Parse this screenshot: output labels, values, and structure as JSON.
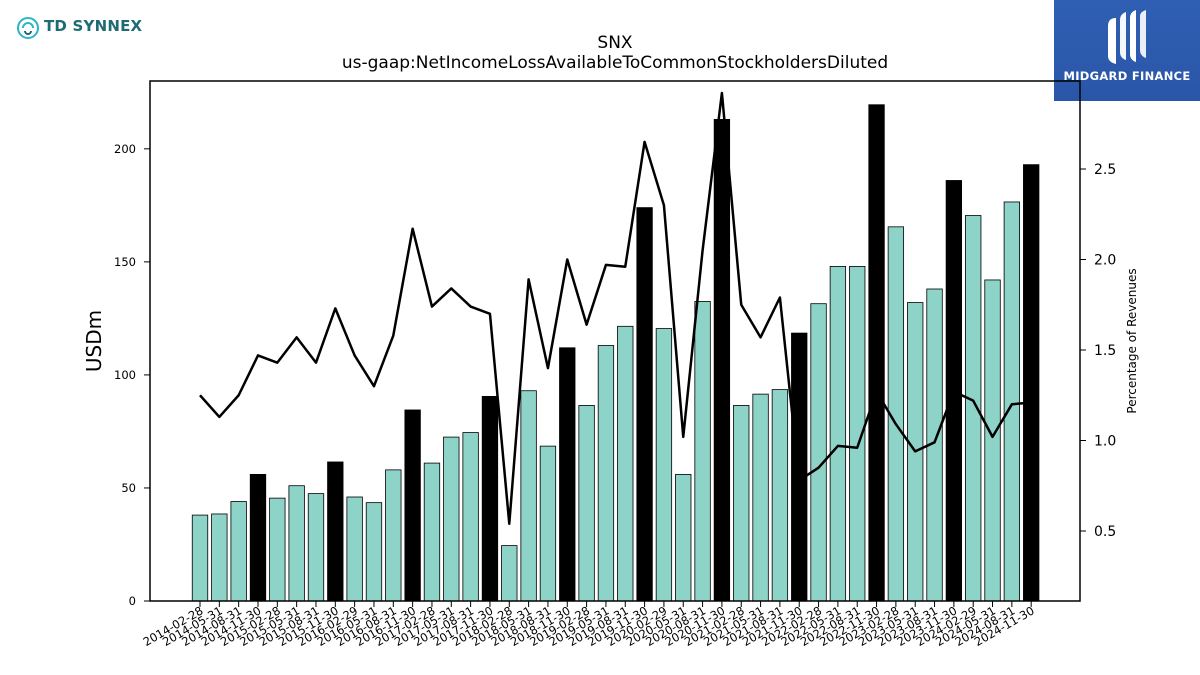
{
  "brand": {
    "left_logo_text": "TD SYNNEX",
    "right_logo_text": "MIDGARD FINANCE",
    "right_logo_bg": "#2c59ad"
  },
  "chart_data": {
    "type": "bar",
    "title": "SNX",
    "subtitle": "us-gaap:NetIncomeLossAvailableToCommonStockholdersDiluted",
    "ylabel": "USDm",
    "y2label": "Percentage of Revenues",
    "ylim": [
      0,
      230
    ],
    "y2lim": [
      0.1,
      3.0
    ],
    "yticks": [
      0,
      50,
      100,
      150,
      200
    ],
    "y2ticks": [
      0.5,
      1.0,
      1.5,
      2.0,
      2.5
    ],
    "bar_colors": {
      "quarter": "#8dd3c7",
      "fiscal_year_end": "#000000"
    },
    "line_color": "#000000",
    "grid": false,
    "legend": "none",
    "categories": [
      "2014-02-28",
      "2014-05-31",
      "2014-08-31",
      "2014-11-30",
      "2015-02-28",
      "2015-05-31",
      "2015-08-31",
      "2015-11-30",
      "2016-02-29",
      "2016-05-31",
      "2016-08-31",
      "2016-11-30",
      "2017-02-28",
      "2017-05-31",
      "2017-08-31",
      "2017-11-30",
      "2018-02-28",
      "2018-05-31",
      "2018-08-31",
      "2018-11-30",
      "2019-02-28",
      "2019-05-31",
      "2019-08-31",
      "2019-11-30",
      "2020-02-29",
      "2020-05-31",
      "2020-08-31",
      "2020-11-30",
      "2021-02-28",
      "2021-05-31",
      "2021-08-31",
      "2021-11-30",
      "2022-02-28",
      "2022-05-31",
      "2022-08-31",
      "2022-11-30",
      "2023-02-28",
      "2023-05-31",
      "2023-08-31",
      "2023-11-30",
      "2024-02-29",
      "2024-05-31",
      "2024-08-31",
      "2024-11-30"
    ],
    "fiscal_year_end": [
      false,
      false,
      false,
      true,
      false,
      false,
      false,
      true,
      false,
      false,
      false,
      true,
      false,
      false,
      false,
      true,
      false,
      false,
      false,
      true,
      false,
      false,
      false,
      true,
      false,
      false,
      false,
      true,
      false,
      false,
      false,
      true,
      false,
      false,
      false,
      true,
      false,
      false,
      false,
      true,
      false,
      false,
      false,
      true
    ],
    "series": [
      {
        "values": [
          38,
          38.5,
          44,
          56,
          45.5,
          51,
          47.5,
          61.5,
          46,
          43.5,
          58,
          84.5,
          61,
          72.5,
          74.5,
          90.5,
          24.5,
          93,
          68.5,
          112,
          86.5,
          113,
          121.5,
          174,
          120.5,
          56,
          132.5,
          213,
          86.5,
          91.5,
          93.5,
          118.5,
          131.5,
          148,
          148,
          219.5,
          165.5,
          132,
          138,
          186,
          170.5,
          142,
          176.5,
          193
        ]
      },
      {
        "axis": "right",
        "values": [
          1.25,
          1.13,
          1.25,
          1.47,
          1.43,
          1.57,
          1.43,
          1.73,
          1.47,
          1.3,
          1.58,
          2.17,
          1.74,
          1.84,
          1.74,
          1.7,
          0.54,
          1.89,
          1.4,
          2.0,
          1.64,
          1.97,
          1.96,
          2.65,
          2.3,
          1.02,
          2.05,
          2.92,
          1.75,
          1.57,
          1.79,
          0.78,
          0.85,
          0.97,
          0.96,
          1.27,
          1.09,
          0.94,
          0.99,
          1.27,
          1.22,
          1.02,
          1.2,
          1.21
        ]
      }
    ]
  }
}
